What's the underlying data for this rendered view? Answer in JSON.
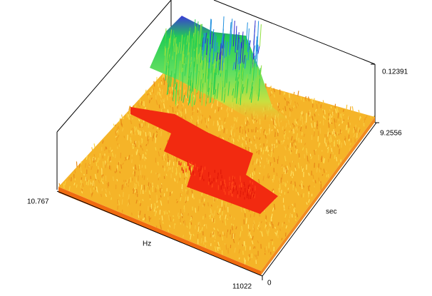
{
  "x_axis": {
    "label": "Hz",
    "start": "10.767",
    "end": "11022"
  },
  "y_axis": {
    "label": "sec",
    "start": "0",
    "end": "9.2556"
  },
  "z_axis": {
    "end": "0.12391"
  }
}
